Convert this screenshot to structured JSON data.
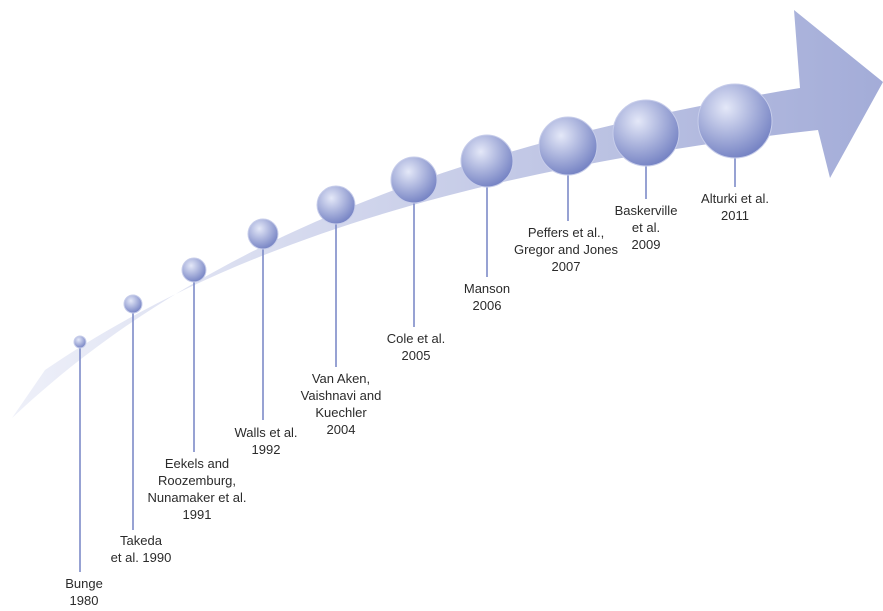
{
  "timeline": {
    "items": [
      {
        "lines": [
          "Bunge",
          "1980"
        ]
      },
      {
        "lines": [
          "Takeda",
          "et al. 1990"
        ]
      },
      {
        "lines": [
          "Eekels and",
          "Roozemburg,",
          "Nunamaker et al.",
          "1991"
        ]
      },
      {
        "lines": [
          "Walls et al.",
          "1992"
        ]
      },
      {
        "lines": [
          "Van Aken,",
          "Vaishnavi and",
          "Kuechler",
          "2004"
        ]
      },
      {
        "lines": [
          "Cole et al.",
          "2005"
        ]
      },
      {
        "lines": [
          "Manson",
          "2006"
        ]
      },
      {
        "lines": [
          "Peffers et al.,",
          "Gregor and Jones",
          "2007"
        ]
      },
      {
        "lines": [
          "Baskerville",
          "et al.",
          "2009"
        ]
      },
      {
        "lines": [
          "Alturki et al.",
          "2011"
        ]
      }
    ]
  },
  "colors": {
    "arrow_light": "#eef0f9",
    "arrow_dark": "#a3acd8",
    "bubble_light": "#e4e8f8",
    "bubble_dark": "#6e7cc0",
    "stem": "#7d8bc8"
  }
}
